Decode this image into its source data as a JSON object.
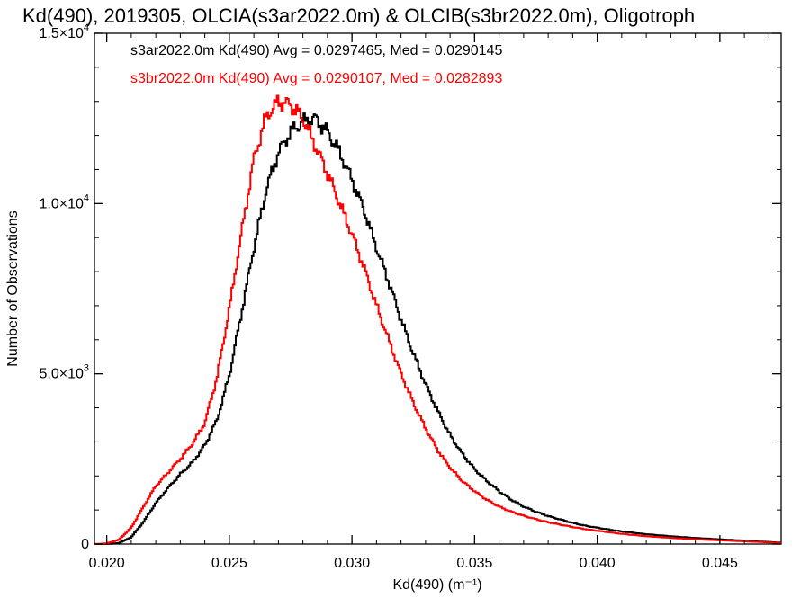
{
  "chart_data": {
    "type": "line",
    "title": "Kd(490), 2019305, OLCIA(s3ar2022.0m) & OLCIB(s3br2022.0m), Oligotroph",
    "xlabel": "Kd(490) (m⁻¹)",
    "ylabel": "Number of Observations",
    "xlim": [
      0.0195,
      0.0475
    ],
    "ylim": [
      0,
      15000
    ],
    "x_ticks": [
      "0.020",
      "0.025",
      "0.030",
      "0.035",
      "0.040",
      "0.045"
    ],
    "x_tick_values": [
      0.02,
      0.025,
      0.03,
      0.035,
      0.04,
      0.045
    ],
    "y_ticks": [
      {
        "value": 0,
        "mantissa": "0",
        "exponent": ""
      },
      {
        "value": 5000,
        "mantissa": "5.0×10",
        "exponent": "3"
      },
      {
        "value": 10000,
        "mantissa": "1.0×10",
        "exponent": "4"
      },
      {
        "value": 15000,
        "mantissa": "1.5×10",
        "exponent": "4"
      }
    ],
    "grid": false,
    "legend_position": "top-left",
    "series": [
      {
        "name": "s3ar2022.0m Kd(490) Avg = 0.0297465, Med = 0.0290145",
        "color": "#000000",
        "step": "histogram",
        "x": [
          0.0195,
          0.02,
          0.0205,
          0.021,
          0.0215,
          0.022,
          0.0225,
          0.023,
          0.0235,
          0.024,
          0.0245,
          0.025,
          0.0255,
          0.026,
          0.0265,
          0.027,
          0.0275,
          0.028,
          0.0285,
          0.029,
          0.0295,
          0.03,
          0.0305,
          0.031,
          0.0315,
          0.032,
          0.0325,
          0.033,
          0.0335,
          0.034,
          0.0345,
          0.035,
          0.0355,
          0.036,
          0.0365,
          0.037,
          0.0375,
          0.038,
          0.0385,
          0.039,
          0.0395,
          0.04,
          0.041,
          0.042,
          0.043,
          0.044,
          0.045,
          0.046,
          0.047,
          0.0475
        ],
        "values": [
          0,
          0,
          30,
          200,
          650,
          1200,
          1650,
          2050,
          2400,
          2900,
          3650,
          4950,
          6800,
          8700,
          10400,
          11500,
          12100,
          12400,
          12500,
          12100,
          11500,
          10700,
          9800,
          8700,
          7700,
          6600,
          5600,
          4700,
          3900,
          3200,
          2650,
          2200,
          1850,
          1550,
          1300,
          1100,
          950,
          820,
          720,
          620,
          540,
          480,
          370,
          290,
          230,
          180,
          140,
          100,
          60,
          40
        ]
      },
      {
        "name": "s3br2022.0m Kd(490) Avg = 0.0290107, Med = 0.0282893",
        "color": "#ff0000",
        "step": "histogram",
        "x": [
          0.0195,
          0.02,
          0.0205,
          0.021,
          0.0215,
          0.022,
          0.0225,
          0.023,
          0.0235,
          0.024,
          0.0245,
          0.025,
          0.0255,
          0.026,
          0.0265,
          0.027,
          0.0275,
          0.028,
          0.0285,
          0.029,
          0.0295,
          0.03,
          0.0305,
          0.031,
          0.0315,
          0.032,
          0.0325,
          0.033,
          0.0335,
          0.034,
          0.0345,
          0.035,
          0.0355,
          0.036,
          0.0365,
          0.037,
          0.0375,
          0.038,
          0.0385,
          0.039,
          0.0395,
          0.04,
          0.041,
          0.042,
          0.043,
          0.044,
          0.045,
          0.046,
          0.047,
          0.0475
        ],
        "values": [
          0,
          20,
          130,
          480,
          1100,
          1700,
          2100,
          2500,
          2950,
          3550,
          4900,
          6900,
          9150,
          11300,
          12550,
          13000,
          12900,
          12500,
          11700,
          10900,
          10000,
          9100,
          8100,
          7000,
          6000,
          5000,
          4150,
          3400,
          2750,
          2250,
          1850,
          1550,
          1300,
          1100,
          950,
          830,
          730,
          640,
          570,
          500,
          440,
          390,
          300,
          230,
          180,
          140,
          110,
          80,
          50,
          30
        ]
      }
    ]
  }
}
